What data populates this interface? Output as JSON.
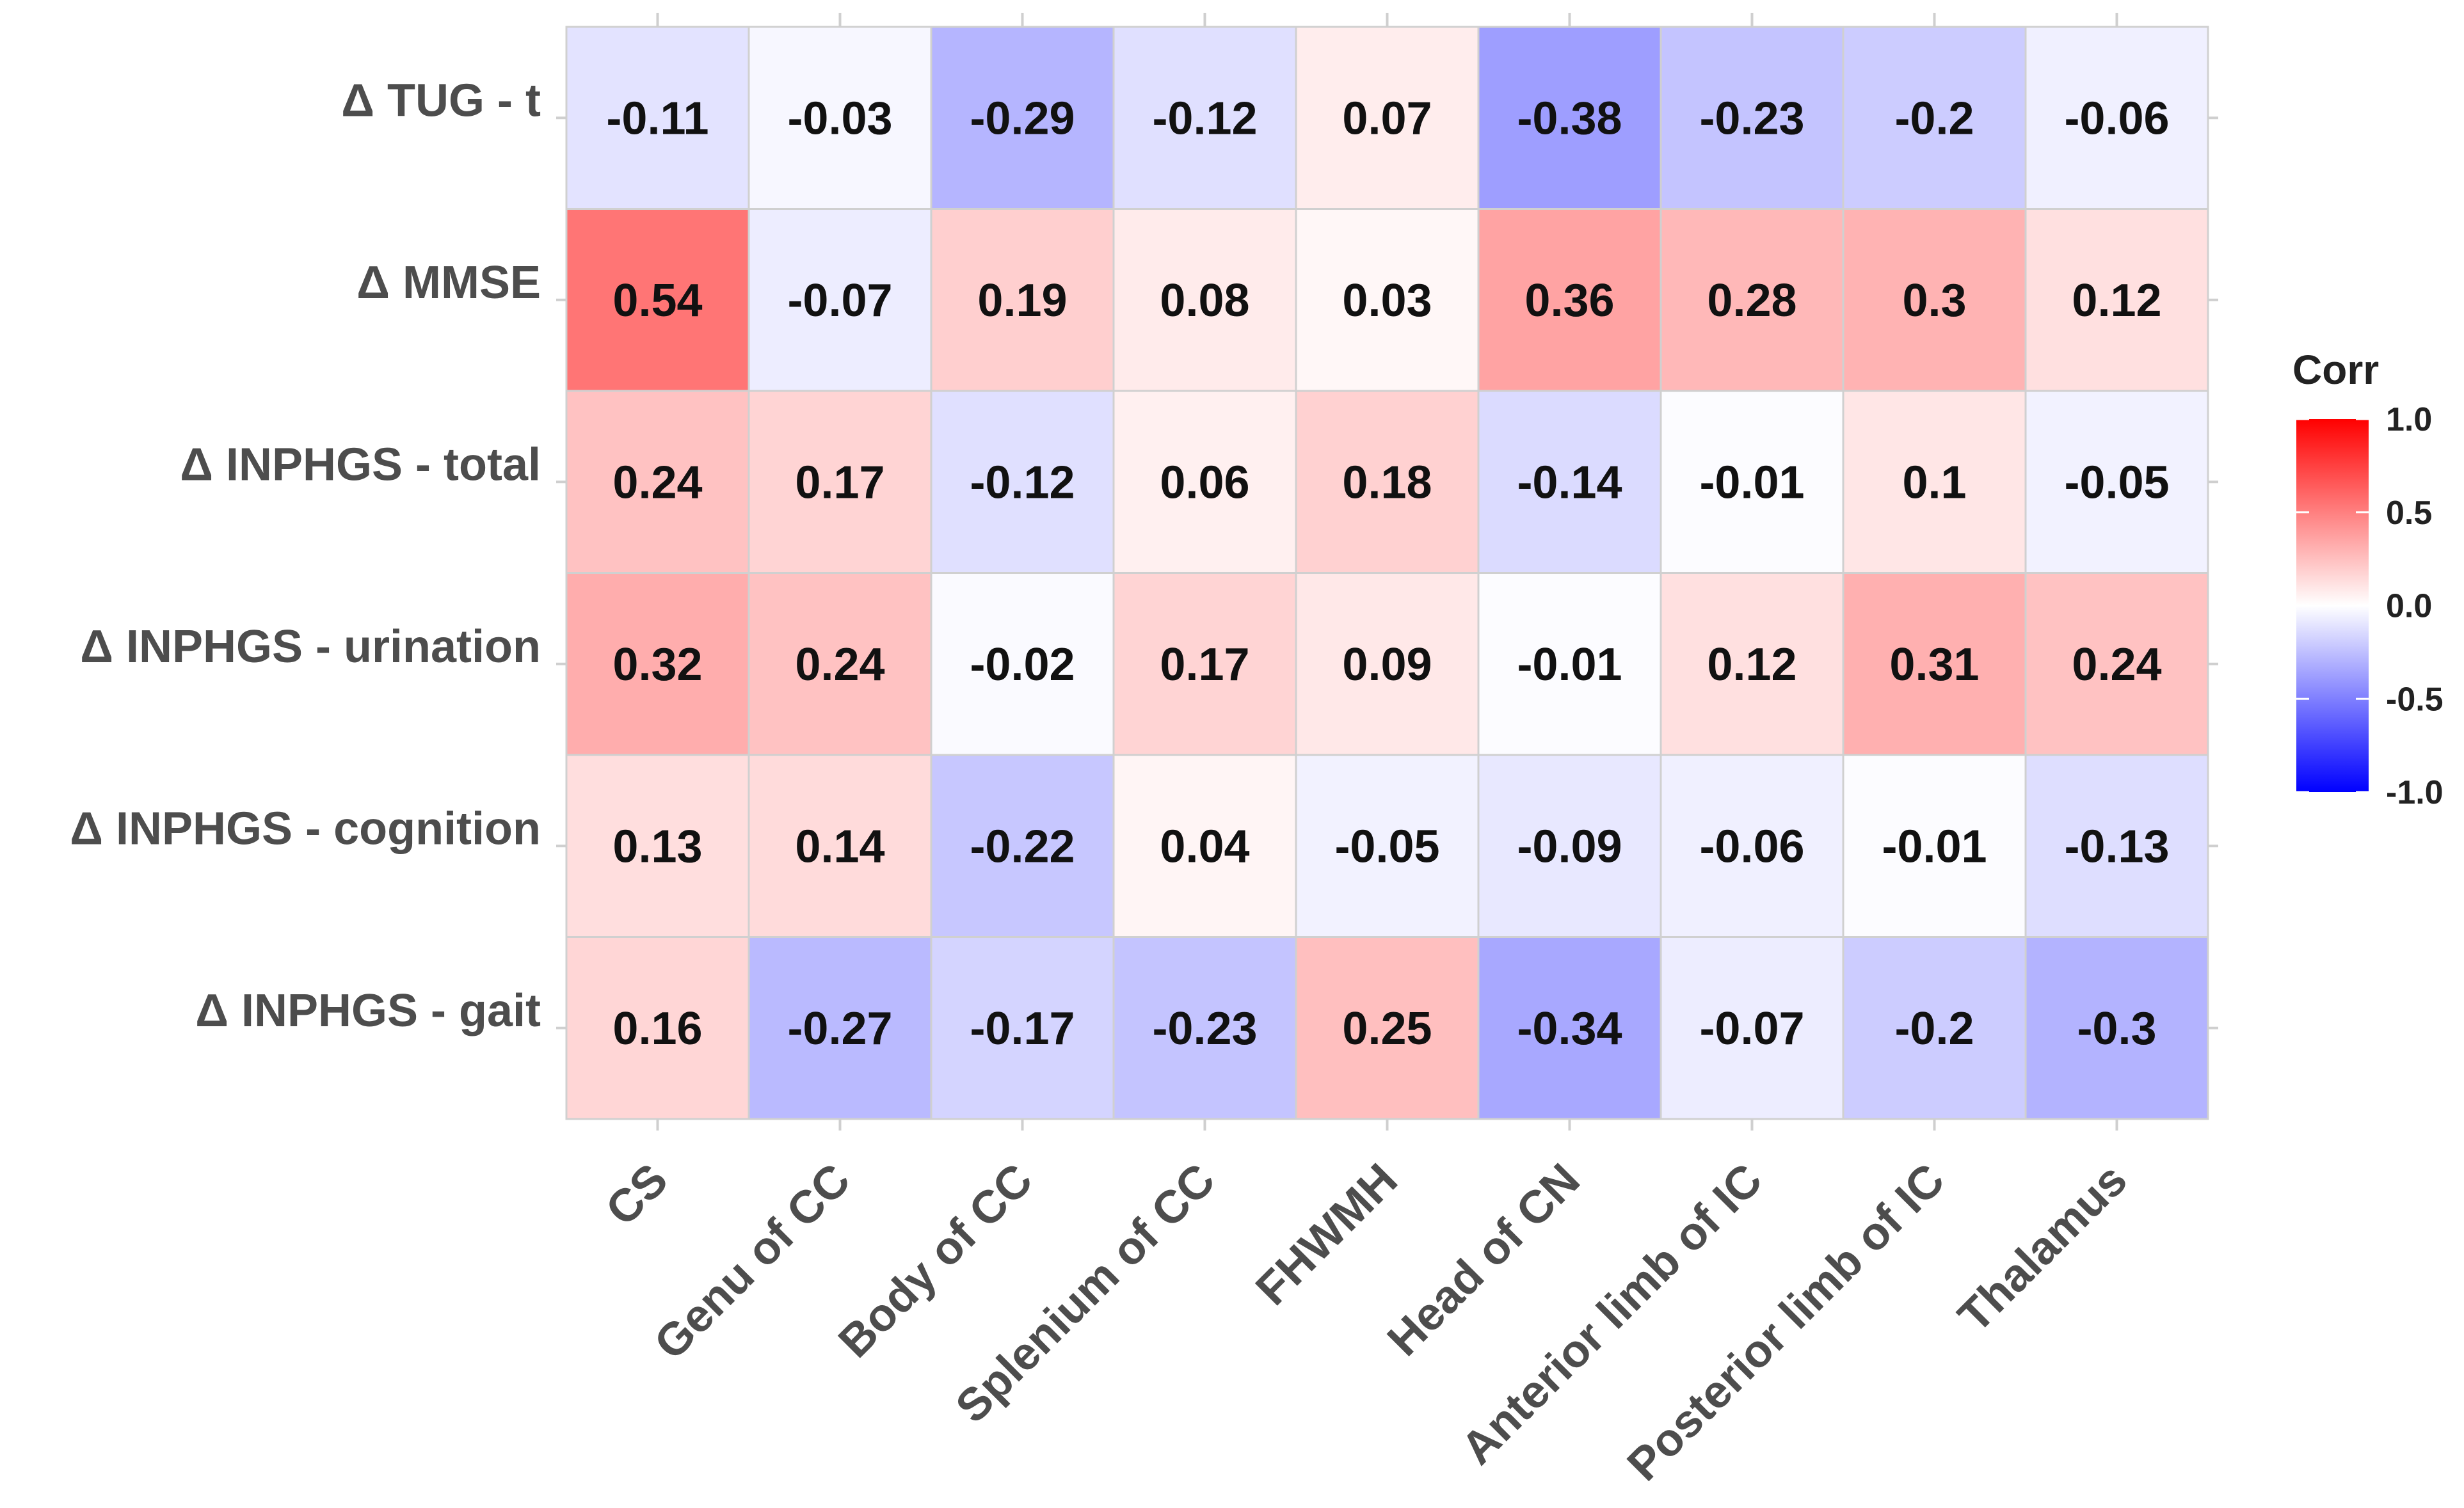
{
  "chart_data": {
    "type": "heatmap",
    "title": "",
    "xlabel": "",
    "ylabel": "",
    "rows": [
      "Δ TUG - t",
      "Δ MMSE",
      "Δ INPHGS - total",
      "Δ INPHGS - urination",
      "Δ INPHGS - cognition",
      "Δ INPHGS - gait"
    ],
    "columns": [
      "CS",
      "Genu of CC",
      "Body of CC",
      "Splenium of CC",
      "FHWMH",
      "Head of CN",
      "Anterior limb of IC",
      "Posterior limb of IC",
      "Thalamus"
    ],
    "values": [
      [
        -0.11,
        -0.03,
        -0.29,
        -0.12,
        0.07,
        -0.38,
        -0.23,
        -0.2,
        -0.06
      ],
      [
        0.54,
        -0.07,
        0.19,
        0.08,
        0.03,
        0.36,
        0.28,
        0.3,
        0.12
      ],
      [
        0.24,
        0.17,
        -0.12,
        0.06,
        0.18,
        -0.14,
        -0.01,
        0.1,
        -0.05
      ],
      [
        0.32,
        0.24,
        -0.02,
        0.17,
        0.09,
        -0.01,
        0.12,
        0.31,
        0.24
      ],
      [
        0.13,
        0.14,
        -0.22,
        0.04,
        -0.05,
        -0.09,
        -0.06,
        -0.01,
        -0.13
      ],
      [
        0.16,
        -0.27,
        -0.17,
        -0.23,
        0.25,
        -0.34,
        -0.07,
        -0.2,
        -0.3
      ]
    ],
    "legend": {
      "title": "Corr",
      "position": "right",
      "range": [
        -1.0,
        1.0
      ],
      "ticks": [
        1.0,
        0.5,
        0.0,
        -0.5,
        -1.0
      ],
      "tick_labels": [
        "1.0",
        "0.5",
        "0.0",
        "-0.5",
        "-1.0"
      ],
      "low_color": "#0000ff",
      "mid_color": "#ffffff",
      "high_color": "#ff0000"
    }
  }
}
